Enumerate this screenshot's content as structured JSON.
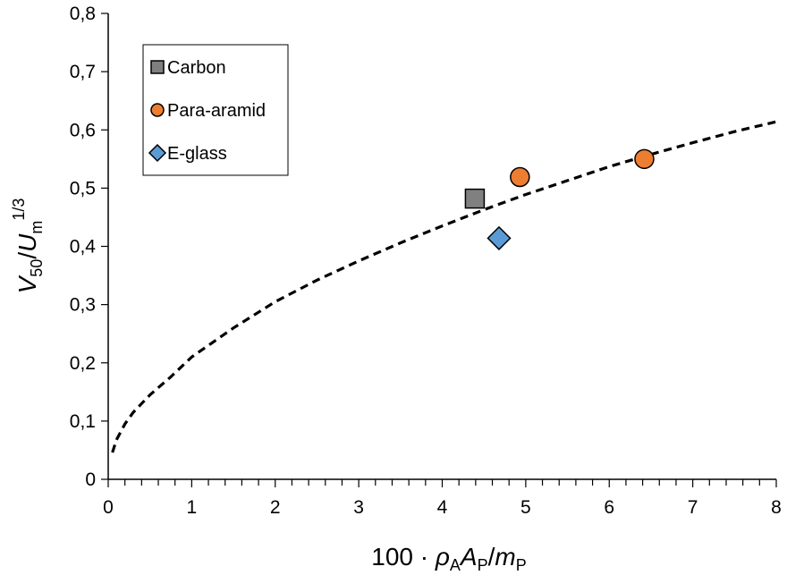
{
  "chart_data": {
    "type": "scatter",
    "xlim": [
      0,
      8
    ],
    "ylim": [
      0,
      0.8
    ],
    "x_ticks": [
      "0",
      "1",
      "2",
      "3",
      "4",
      "5",
      "6",
      "7",
      "8"
    ],
    "y_ticks": [
      "0",
      "0,1",
      "0,2",
      "0,3",
      "0,4",
      "0,5",
      "0,6",
      "0,7",
      "0,8"
    ],
    "xlabel": {
      "prefix": "100 · ",
      "rho": "ρ",
      "rho_sub": "A",
      "A": "A",
      "A_sub": "P",
      "slash": "/",
      "m": "m",
      "m_sub": "P"
    },
    "ylabel": {
      "V": "V",
      "V_sub": "50",
      "slash": "/",
      "U": "U",
      "U_sub": "m",
      "U_sup": "1/3"
    },
    "grid": false,
    "legend_position": "top-left",
    "series": [
      {
        "name": "Carbon",
        "marker": "square",
        "color": "#808080",
        "points": [
          [
            4.39,
            0.482
          ]
        ]
      },
      {
        "name": "Para-aramid",
        "marker": "circle",
        "color": "#ED7D31",
        "points": [
          [
            4.93,
            0.519
          ],
          [
            6.42,
            0.55
          ]
        ]
      },
      {
        "name": "E-glass",
        "marker": "diamond",
        "color": "#5B9BD5",
        "points": [
          [
            4.68,
            0.414
          ]
        ]
      }
    ],
    "fit_curve": {
      "style": "dashed",
      "color": "#000000",
      "x": [
        0.05,
        0.1,
        0.2,
        0.3,
        0.5,
        0.75,
        1,
        1.5,
        2,
        2.5,
        3,
        3.5,
        4,
        4.5,
        5,
        5.5,
        6,
        6.5,
        7,
        7.5,
        8
      ],
      "y": [
        0.046,
        0.068,
        0.095,
        0.115,
        0.145,
        0.176,
        0.21,
        0.26,
        0.305,
        0.342,
        0.375,
        0.406,
        0.435,
        0.463,
        0.489,
        0.513,
        0.537,
        0.558,
        0.578,
        0.597,
        0.614
      ]
    }
  }
}
